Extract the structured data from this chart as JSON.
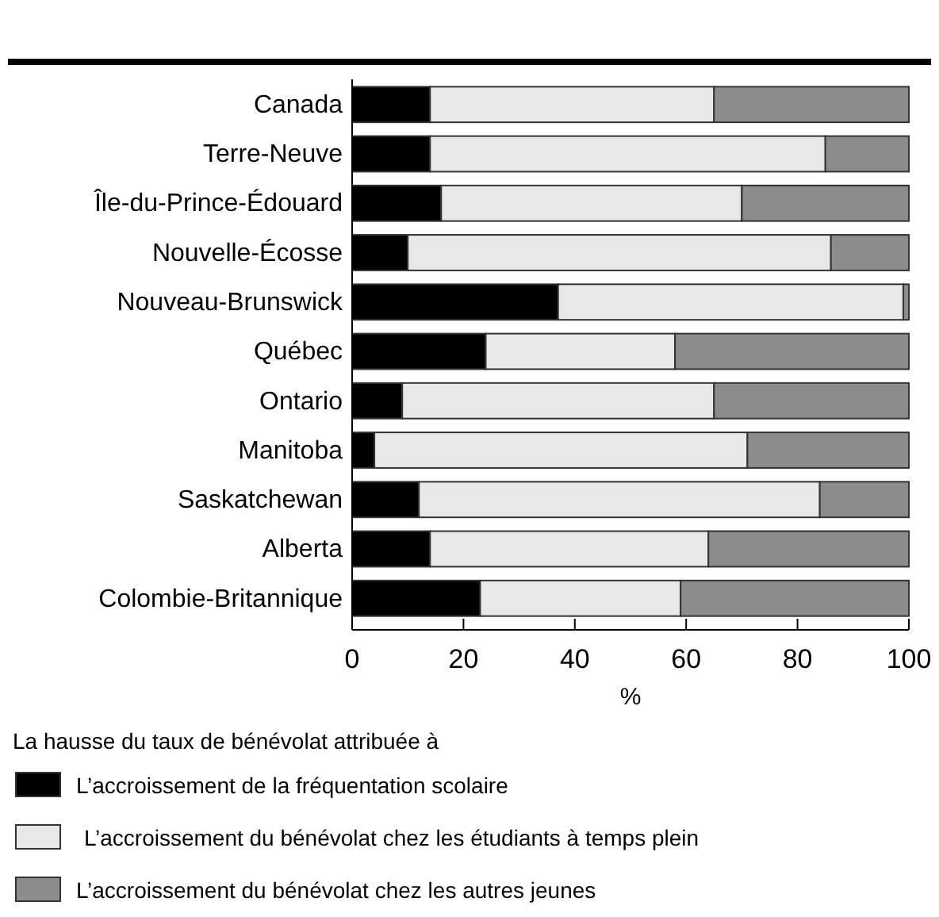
{
  "chart_data": {
    "type": "bar",
    "orientation": "horizontal",
    "stacked": true,
    "categories": [
      "Canada",
      "Terre-Neuve",
      "Île-du-Prince-Édouard",
      "Nouvelle-Écosse",
      "Nouveau-Brunswick",
      "Québec",
      "Ontario",
      "Manitoba",
      "Saskatchewan",
      "Alberta",
      "Colombie-Britannique"
    ],
    "series": [
      {
        "name": "L’accroissement de la fréquentation scolaire",
        "color": "#000000",
        "values": [
          14,
          14,
          16,
          10,
          37,
          24,
          9,
          4,
          12,
          14,
          23
        ]
      },
      {
        "name": "L’accroissement du bénévolat chez les étudiants à temps plein",
        "color": "#e8e8e8",
        "values": [
          51,
          71,
          54,
          76,
          62,
          34,
          56,
          67,
          72,
          50,
          36
        ]
      },
      {
        "name": "L’accroissement du bénévolat chez les autres jeunes",
        "color": "#8c8c8c",
        "values": [
          35,
          15,
          30,
          14,
          1,
          42,
          35,
          29,
          16,
          36,
          41
        ]
      }
    ],
    "xlim": [
      0,
      100
    ],
    "xticks": [
      0,
      20,
      40,
      60,
      80,
      100
    ],
    "xlabel": "%",
    "legend_title": "La hausse du taux de bénévolat attribuée à",
    "legend": "bottom",
    "grid": false
  }
}
